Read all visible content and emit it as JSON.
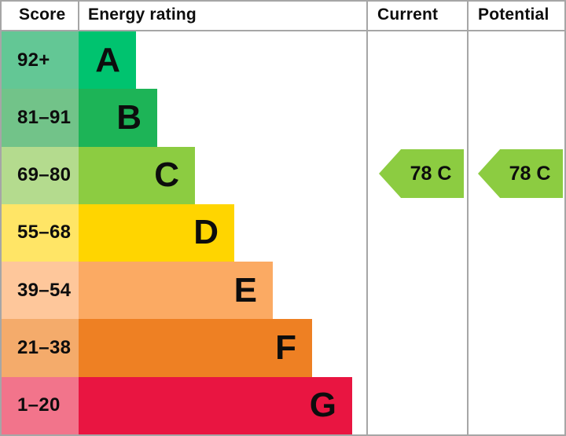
{
  "header": {
    "score": "Score",
    "energy_rating": "Energy rating",
    "current": "Current",
    "potential": "Potential"
  },
  "chart_data": {
    "type": "bar",
    "title": "Energy rating",
    "columns": [
      "Score",
      "Energy rating",
      "Current",
      "Potential"
    ],
    "bands": [
      {
        "letter": "A",
        "score_range": "92+",
        "score_bg": "#63c795",
        "bar_bg": "#00c36f"
      },
      {
        "letter": "B",
        "score_range": "81–91",
        "score_bg": "#72c389",
        "bar_bg": "#1db457"
      },
      {
        "letter": "C",
        "score_range": "69–80",
        "score_bg": "#b4db8e",
        "bar_bg": "#8ccc41"
      },
      {
        "letter": "D",
        "score_range": "55–68",
        "score_bg": "#ffe566",
        "bar_bg": "#ffd500"
      },
      {
        "letter": "E",
        "score_range": "39–54",
        "score_bg": "#fec79b",
        "bar_bg": "#fbaa63"
      },
      {
        "letter": "F",
        "score_range": "21–38",
        "score_bg": "#f4ab6b",
        "bar_bg": "#ee8023"
      },
      {
        "letter": "G",
        "score_range": "1–20",
        "score_bg": "#f2748b",
        "bar_bg": "#e91541"
      }
    ],
    "current": {
      "label": "78 C",
      "score": 78,
      "rating": "C",
      "arrow_color": "#8ccc41"
    },
    "potential": {
      "label": "78 C",
      "score": 78,
      "rating": "C",
      "arrow_color": "#8ccc41"
    }
  },
  "colors": {
    "border": "#a6a6a6",
    "text": "#0d0d0d",
    "background": "#ffffff"
  }
}
